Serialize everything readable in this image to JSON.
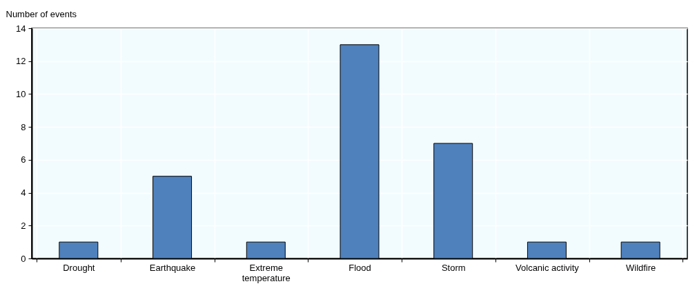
{
  "chart_data": {
    "type": "bar",
    "ylabel": "Number of events",
    "categories": [
      "Drought",
      "Earthquake",
      "Extreme temperature",
      "Flood",
      "Storm",
      "Volcanic activity",
      "Wildfire"
    ],
    "values": [
      1,
      5,
      1,
      13,
      7,
      1,
      1
    ],
    "color": "#4f81bd",
    "ylim": [
      0,
      14
    ],
    "yticks": [
      0,
      2,
      4,
      6,
      8,
      10,
      12,
      14
    ],
    "grid": true
  }
}
